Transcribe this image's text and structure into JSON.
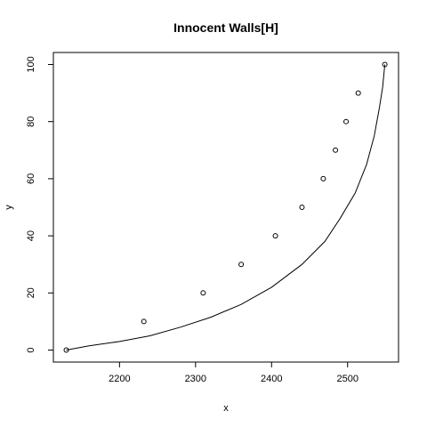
{
  "chart_data": {
    "type": "scatter",
    "title": "Innocent Walls[H]",
    "xlabel": "x",
    "ylabel": "y",
    "xlim": [
      2113,
      2567
    ],
    "ylim": [
      -4.2,
      104.2
    ],
    "x_ticks": [
      2200,
      2300,
      2400,
      2500
    ],
    "y_ticks": [
      0,
      20,
      40,
      60,
      80,
      100
    ],
    "grid": false,
    "legend": "none",
    "points": [
      {
        "x": 2130,
        "y": 0
      },
      {
        "x": 2232,
        "y": 10
      },
      {
        "x": 2310,
        "y": 20
      },
      {
        "x": 2360,
        "y": 30
      },
      {
        "x": 2405,
        "y": 40
      },
      {
        "x": 2440,
        "y": 50
      },
      {
        "x": 2468,
        "y": 60
      },
      {
        "x": 2484,
        "y": 70
      },
      {
        "x": 2498,
        "y": 80
      },
      {
        "x": 2514,
        "y": 90
      },
      {
        "x": 2549,
        "y": 100
      }
    ],
    "curve": [
      {
        "x": 2130,
        "y": 0
      },
      {
        "x": 2160,
        "y": 1.5
      },
      {
        "x": 2200,
        "y": 3
      },
      {
        "x": 2240,
        "y": 5
      },
      {
        "x": 2280,
        "y": 8
      },
      {
        "x": 2320,
        "y": 11.5
      },
      {
        "x": 2360,
        "y": 16
      },
      {
        "x": 2400,
        "y": 22
      },
      {
        "x": 2440,
        "y": 30
      },
      {
        "x": 2470,
        "y": 38
      },
      {
        "x": 2490,
        "y": 46
      },
      {
        "x": 2510,
        "y": 55
      },
      {
        "x": 2525,
        "y": 65
      },
      {
        "x": 2535,
        "y": 75
      },
      {
        "x": 2542,
        "y": 85
      },
      {
        "x": 2546,
        "y": 92
      },
      {
        "x": 2549,
        "y": 100
      }
    ]
  }
}
